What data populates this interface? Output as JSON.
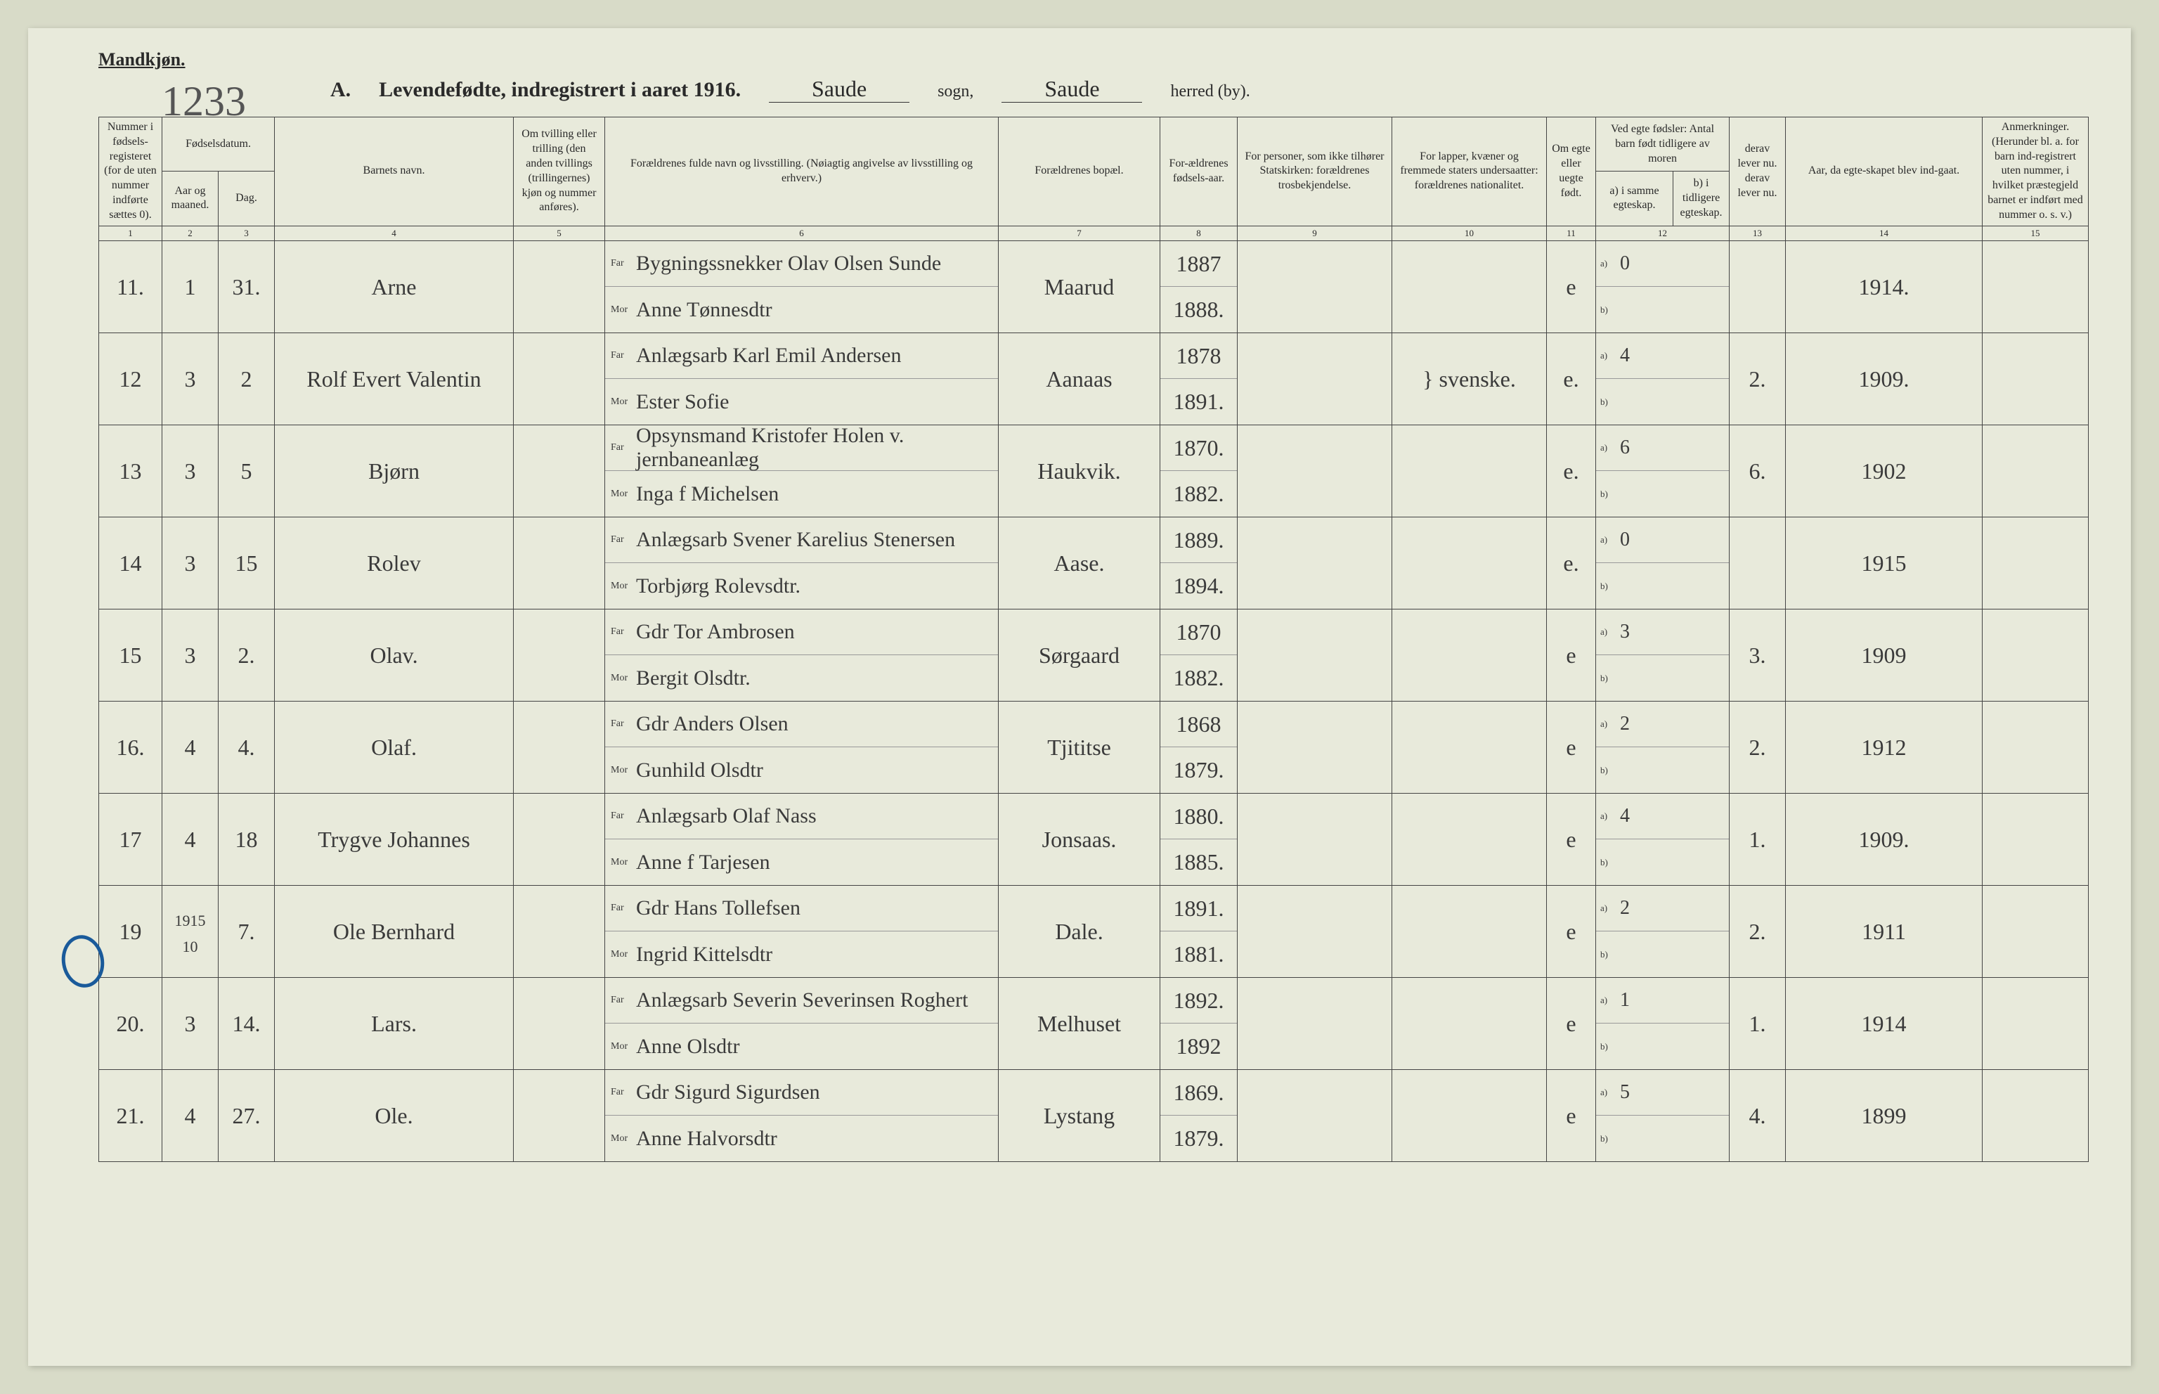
{
  "page": {
    "gender_label": "Mandkjøn.",
    "title_prefix": "A.",
    "title_main": "Levendefødte, indregistrert i aaret 191",
    "title_year_digit": "6.",
    "sogn_value": "Saude",
    "sogn_label": "sogn,",
    "herred_value": "Saude",
    "herred_label": "herred (by).",
    "page_number": "1233",
    "background_color": "#e8eadb",
    "border_color": "#444444",
    "text_color": "#2a2a2a",
    "script_color": "#3a3a3a"
  },
  "headers": {
    "c1": "Nummer i fødsels-registeret (for de uten nummer indførte sættes 0).",
    "c2_top": "Fødselsdatum.",
    "c2a": "Aar og maaned.",
    "c2b": "Dag.",
    "c4": "Barnets navn.",
    "c5": "Om tvilling eller trilling (den anden tvillings (trillingernes) kjøn og nummer anføres).",
    "c6": "Forældrenes fulde navn og livsstilling. (Nøiagtig angivelse av livsstilling og erhverv.)",
    "c7": "Forældrenes bopæl.",
    "c8": "For-ældrenes fødsels-aar.",
    "c9": "For personer, som ikke tilhører Statskirken: forældrenes trosbekjendelse.",
    "c10": "For lapper, kvæner og fremmede staters undersaatter: forældrenes nationalitet.",
    "c11": "Om egte eller uegte født.",
    "c12_top": "Ved egte fødsler: Antal barn født tidligere av moren",
    "c12a": "a) i samme egteskap.",
    "c12b": "b) i tidligere egteskap.",
    "c13": "derav lever nu. derav lever nu.",
    "c14": "Aar, da egte-skapet blev ind-gaat.",
    "c15": "Anmerkninger. (Herunder bl. a. for barn ind-registrert uten nummer, i hvilket præstegjeld barnet er indført med nummer o. s. v.)",
    "far": "Far",
    "mor": "Mor",
    "a_label": "a)",
    "b_label": "b)"
  },
  "colnums": [
    "1",
    "2",
    "3",
    "4",
    "5",
    "6",
    "7",
    "8",
    "9",
    "10",
    "11",
    "12",
    "13",
    "14",
    "15"
  ],
  "rows": [
    {
      "n": "11.",
      "mon": "1",
      "day": "31.",
      "name": "Arne",
      "far": "Bygningssnekker Olav Olsen Sunde",
      "mor": "Anne Tønnesdtr",
      "res": "Maarud",
      "fy": "1887",
      "my": "1888.",
      "rel": "",
      "nat": "",
      "leg": "e",
      "a": "0",
      "b": "",
      "liv": "",
      "marr": "1914."
    },
    {
      "n": "12",
      "mon": "3",
      "day": "2",
      "name": "Rolf Evert Valentin",
      "far": "Anlægsarb Karl Emil Andersen",
      "mor": "Ester Sofie",
      "res": "Aanaas",
      "fy": "1878",
      "my": "1891.",
      "rel": "",
      "nat": "} svenske.",
      "leg": "e.",
      "a": "4",
      "b": "",
      "liv": "2.",
      "marr": "1909."
    },
    {
      "n": "13",
      "mon": "3",
      "day": "5",
      "name": "Bjørn",
      "far": "Opsynsmand Kristofer Holen v. jernbaneanlæg",
      "mor": "Inga f Michelsen",
      "res": "Haukvik.",
      "fy": "1870.",
      "my": "1882.",
      "rel": "",
      "nat": "",
      "leg": "e.",
      "a": "6",
      "b": "",
      "liv": "6.",
      "marr": "1902"
    },
    {
      "n": "14",
      "mon": "3",
      "day": "15",
      "name": "Rolev",
      "far": "Anlægsarb Svener Karelius Stenersen",
      "mor": "Torbjørg Rolevsdtr.",
      "res": "Aase.",
      "fy": "1889.",
      "my": "1894.",
      "rel": "",
      "nat": "",
      "leg": "e.",
      "a": "0",
      "b": "",
      "liv": "",
      "marr": "1915"
    },
    {
      "n": "15",
      "mon": "3",
      "day": "2.",
      "name": "Olav.",
      "far": "Gdr Tor Ambrosen",
      "mor": "Bergit Olsdtr.",
      "res": "Sørgaard",
      "fy": "1870",
      "my": "1882.",
      "rel": "",
      "nat": "",
      "leg": "e",
      "a": "3",
      "b": "",
      "liv": "3.",
      "marr": "1909"
    },
    {
      "n": "16.",
      "mon": "4",
      "day": "4.",
      "name": "Olaf.",
      "far": "Gdr Anders Olsen",
      "mor": "Gunhild Olsdtr",
      "res": "Tjititse",
      "fy": "1868",
      "my": "1879.",
      "rel": "",
      "nat": "",
      "leg": "e",
      "a": "2",
      "b": "",
      "liv": "2.",
      "marr": "1912"
    },
    {
      "n": "17",
      "mon": "4",
      "day": "18",
      "name": "Trygve Johannes",
      "far": "Anlægsarb Olaf Nass",
      "mor": "Anne f Tarjesen",
      "res": "Jonsaas.",
      "fy": "1880.",
      "my": "1885.",
      "rel": "",
      "nat": "",
      "leg": "e",
      "a": "4",
      "b": "",
      "liv": "1.",
      "marr": "1909."
    },
    {
      "n": "19",
      "mon": "1915 10",
      "day": "7.",
      "name": "Ole Bernhard",
      "far": "Gdr Hans Tollefsen",
      "mor": "Ingrid Kittelsdtr",
      "res": "Dale.",
      "fy": "1891.",
      "my": "1881.",
      "rel": "",
      "nat": "",
      "leg": "e",
      "a": "2",
      "b": "",
      "liv": "2.",
      "marr": "1911"
    },
    {
      "n": "20.",
      "mon": "3",
      "day": "14.",
      "name": "Lars.",
      "far": "Anlægsarb Severin Severinsen Roghert",
      "mor": "Anne Olsdtr",
      "res": "Melhuset",
      "fy": "1892.",
      "my": "1892",
      "rel": "",
      "nat": "",
      "leg": "e",
      "a": "1",
      "b": "",
      "liv": "1.",
      "marr": "1914"
    },
    {
      "n": "21.",
      "mon": "4",
      "day": "27.",
      "name": "Ole.",
      "far": "Gdr Sigurd Sigurdsen",
      "mor": "Anne Halvorsdtr",
      "res": "Lystang",
      "fy": "1869.",
      "my": "1879.",
      "rel": "",
      "nat": "",
      "leg": "e",
      "a": "5",
      "b": "",
      "liv": "4.",
      "marr": "1899"
    }
  ]
}
